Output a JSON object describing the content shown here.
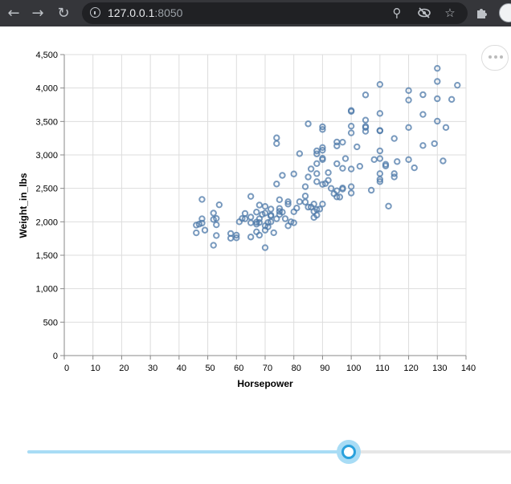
{
  "browser": {
    "url_host": "127.0.0.1",
    "url_port": ":8050",
    "icons": {
      "back": "back-arrow-icon",
      "forward": "forward-arrow-icon",
      "reload": "reload-icon",
      "site_info": "info-icon",
      "zoom": "zoom-icon",
      "tracking": "eye-off-icon",
      "bookmark": "star-icon",
      "extensions": "puzzle-icon",
      "profile": "avatar"
    }
  },
  "chart_actions": {
    "icon": "more-horizontal-icon"
  },
  "chart_data": {
    "type": "scatter",
    "xlabel": "Horsepower",
    "ylabel": "Weight_in_lbs",
    "xlim": [
      0,
      140
    ],
    "ylim": [
      0,
      4500
    ],
    "x_ticks": [
      "0",
      "10",
      "20",
      "30",
      "40",
      "50",
      "60",
      "70",
      "80",
      "90",
      "100",
      "110",
      "120",
      "130",
      "140"
    ],
    "y_ticks": [
      "0",
      "500",
      "1,000",
      "1,500",
      "2,000",
      "2,500",
      "3,000",
      "3,500",
      "4,000",
      "4,500"
    ],
    "grid": true,
    "marker": "open-circle",
    "color": "#4c78a8",
    "points": [
      [
        46,
        1835
      ],
      [
        46,
        1950
      ],
      [
        47,
        1965
      ],
      [
        48,
        2045
      ],
      [
        48,
        2335
      ],
      [
        48,
        1980
      ],
      [
        49,
        1875
      ],
      [
        52,
        1649
      ],
      [
        52,
        2035
      ],
      [
        52,
        2130
      ],
      [
        53,
        1795
      ],
      [
        53,
        2050
      ],
      [
        53,
        1955
      ],
      [
        54,
        2254
      ],
      [
        58,
        1755
      ],
      [
        58,
        1825
      ],
      [
        60,
        1760
      ],
      [
        60,
        1800
      ],
      [
        61,
        2000
      ],
      [
        62,
        2050
      ],
      [
        63,
        2045
      ],
      [
        63,
        2125
      ],
      [
        65,
        1985
      ],
      [
        65,
        2070
      ],
      [
        65,
        1773
      ],
      [
        65,
        2380
      ],
      [
        67,
        1965
      ],
      [
        67,
        1850
      ],
      [
        67,
        1995
      ],
      [
        67,
        2145
      ],
      [
        68,
        1800
      ],
      [
        68,
        1990
      ],
      [
        68,
        2045
      ],
      [
        68,
        2250
      ],
      [
        69,
        2110
      ],
      [
        70,
        1613
      ],
      [
        70,
        1875
      ],
      [
        70,
        1940
      ],
      [
        70,
        2230
      ],
      [
        70,
        2130
      ],
      [
        71,
        1990
      ],
      [
        71,
        1925
      ],
      [
        72,
        2000
      ],
      [
        72,
        2085
      ],
      [
        72,
        2100
      ],
      [
        72,
        2190
      ],
      [
        73,
        1837
      ],
      [
        74,
        2045
      ],
      [
        74,
        3170
      ],
      [
        74,
        3255
      ],
      [
        74,
        2565
      ],
      [
        75,
        2108
      ],
      [
        75,
        2155
      ],
      [
        75,
        2200
      ],
      [
        75,
        2330
      ],
      [
        76,
        2144
      ],
      [
        77,
        2046
      ],
      [
        76,
        2694
      ],
      [
        78,
        2300
      ],
      [
        78,
        2265
      ],
      [
        78,
        1940
      ],
      [
        79,
        2000
      ],
      [
        80,
        1985
      ],
      [
        80,
        2150
      ],
      [
        80,
        2715
      ],
      [
        81,
        2205
      ],
      [
        82,
        2300
      ],
      [
        82,
        3019
      ],
      [
        84,
        2385
      ],
      [
        84,
        2295
      ],
      [
        84,
        2525
      ],
      [
        85,
        2220
      ],
      [
        85,
        2670
      ],
      [
        85,
        3465
      ],
      [
        86,
        2220
      ],
      [
        86,
        2790
      ],
      [
        87,
        2265
      ],
      [
        87,
        2065
      ],
      [
        87,
        2155
      ],
      [
        88,
        2100
      ],
      [
        88,
        2185
      ],
      [
        88,
        2600
      ],
      [
        88,
        2720
      ],
      [
        88,
        3015
      ],
      [
        88,
        3060
      ],
      [
        88,
        2870
      ],
      [
        89,
        2190
      ],
      [
        90,
        2950
      ],
      [
        90,
        3070
      ],
      [
        90,
        2930
      ],
      [
        90,
        2265
      ],
      [
        90,
        2560
      ],
      [
        90,
        3110
      ],
      [
        90,
        3420
      ],
      [
        90,
        3380
      ],
      [
        91,
        2572
      ],
      [
        92,
        2735
      ],
      [
        92,
        2620
      ],
      [
        93,
        2500
      ],
      [
        94,
        2420
      ],
      [
        95,
        2372
      ],
      [
        95,
        2464
      ],
      [
        95,
        2868
      ],
      [
        95,
        3135
      ],
      [
        95,
        3193
      ],
      [
        96,
        2370
      ],
      [
        97,
        2506
      ],
      [
        97,
        2489
      ],
      [
        97,
        2800
      ],
      [
        97,
        3190
      ],
      [
        98,
        2945
      ],
      [
        100,
        2430
      ],
      [
        100,
        2525
      ],
      [
        100,
        2789
      ],
      [
        100,
        3430
      ],
      [
        100,
        3329
      ],
      [
        100,
        3651
      ],
      [
        100,
        3664
      ],
      [
        102,
        3121
      ],
      [
        103,
        2830
      ],
      [
        105,
        3353
      ],
      [
        105,
        3425
      ],
      [
        105,
        3897
      ],
      [
        105,
        3410
      ],
      [
        105,
        3520
      ],
      [
        107,
        2472
      ],
      [
        108,
        2930
      ],
      [
        110,
        2945
      ],
      [
        110,
        3360
      ],
      [
        110,
        3620
      ],
      [
        110,
        3365
      ],
      [
        110,
        2720
      ],
      [
        110,
        2635
      ],
      [
        110,
        2600
      ],
      [
        110,
        4054
      ],
      [
        110,
        3060
      ],
      [
        112,
        2835
      ],
      [
        112,
        2860
      ],
      [
        113,
        2234
      ],
      [
        115,
        2671
      ],
      [
        115,
        3245
      ],
      [
        115,
        2720
      ],
      [
        116,
        2900
      ],
      [
        120,
        3820
      ],
      [
        120,
        3962
      ],
      [
        120,
        2930
      ],
      [
        120,
        3410
      ],
      [
        122,
        2807
      ],
      [
        125,
        3140
      ],
      [
        125,
        3605
      ],
      [
        125,
        3900
      ],
      [
        129,
        3169
      ],
      [
        130,
        3504
      ],
      [
        130,
        3840
      ],
      [
        130,
        4098
      ],
      [
        130,
        4294
      ],
      [
        132,
        2910
      ],
      [
        133,
        3410
      ],
      [
        135,
        3830
      ],
      [
        137,
        4042
      ]
    ]
  }
}
